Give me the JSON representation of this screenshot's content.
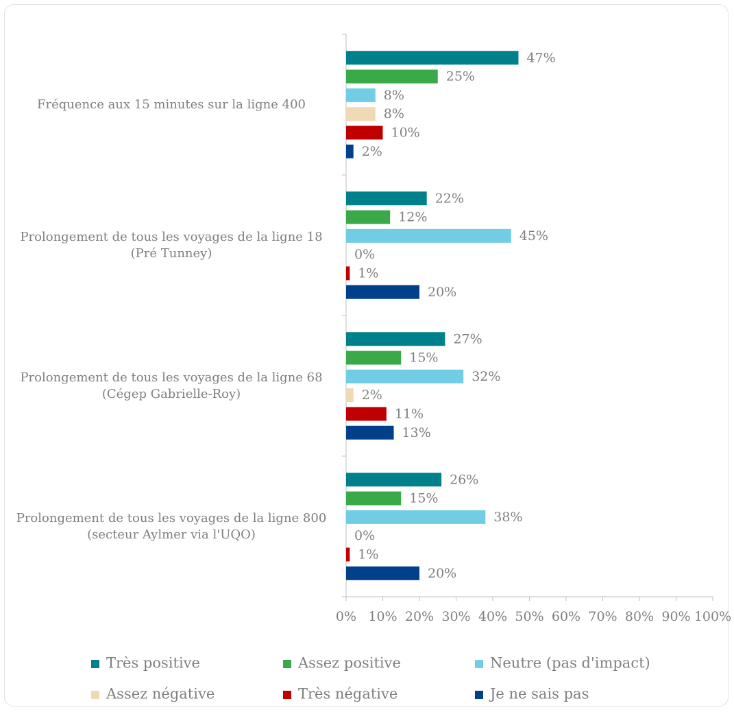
{
  "chart_data": {
    "type": "bar",
    "orientation": "horizontal",
    "categories": [
      "Fréquence aux 15 minutes sur la ligne 400",
      "Prolongement de tous les voyages de la ligne 18\n(Pré Tunney)",
      "Prolongement de tous les voyages de la ligne 68\n(Cégep Gabrielle-Roy)",
      "Prolongement de tous les voyages de la ligne 800\n(secteur Aylmer via l'UQO)"
    ],
    "series": [
      {
        "name": "Très positive",
        "color": "#00808a",
        "values": [
          47,
          22,
          27,
          26
        ],
        "value_labels": [
          "47%",
          "22%",
          "27%",
          "26%"
        ]
      },
      {
        "name": "Assez positive",
        "color": "#3aaa48",
        "values": [
          25,
          12,
          15,
          15
        ],
        "value_labels": [
          "25%",
          "12%",
          "15%",
          "15%"
        ]
      },
      {
        "name": "Neutre (pas d'impact)",
        "color": "#70cde3",
        "values": [
          8,
          45,
          32,
          38
        ],
        "value_labels": [
          "8%",
          "45%",
          "32%",
          "38%"
        ]
      },
      {
        "name": "Assez négative",
        "color": "#f0d9b5",
        "values": [
          8,
          0,
          2,
          0
        ],
        "value_labels": [
          "8%",
          "0%",
          "2%",
          "0%"
        ]
      },
      {
        "name": "Très négative",
        "color": "#c00000",
        "values": [
          10,
          1,
          11,
          1
        ],
        "value_labels": [
          "10%",
          "1%",
          "11%",
          "1%"
        ]
      },
      {
        "name": "Je ne sais pas",
        "color": "#003f8a",
        "values": [
          2,
          20,
          13,
          20
        ],
        "value_labels": [
          "2%",
          "20%",
          "13%",
          "20%"
        ]
      }
    ],
    "xlim": [
      0,
      100
    ],
    "xticks": [
      {
        "value": 0,
        "label": "0%"
      },
      {
        "value": 10,
        "label": "10%"
      },
      {
        "value": 20,
        "label": "20%"
      },
      {
        "value": 30,
        "label": "30%"
      },
      {
        "value": 40,
        "label": "40%"
      },
      {
        "value": 50,
        "label": "50%"
      },
      {
        "value": 60,
        "label": "60%"
      },
      {
        "value": 70,
        "label": "70%"
      },
      {
        "value": 80,
        "label": "80%"
      },
      {
        "value": 90,
        "label": "90%"
      },
      {
        "value": 100,
        "label": "100%"
      }
    ],
    "grid": false,
    "legend": "bottom"
  }
}
